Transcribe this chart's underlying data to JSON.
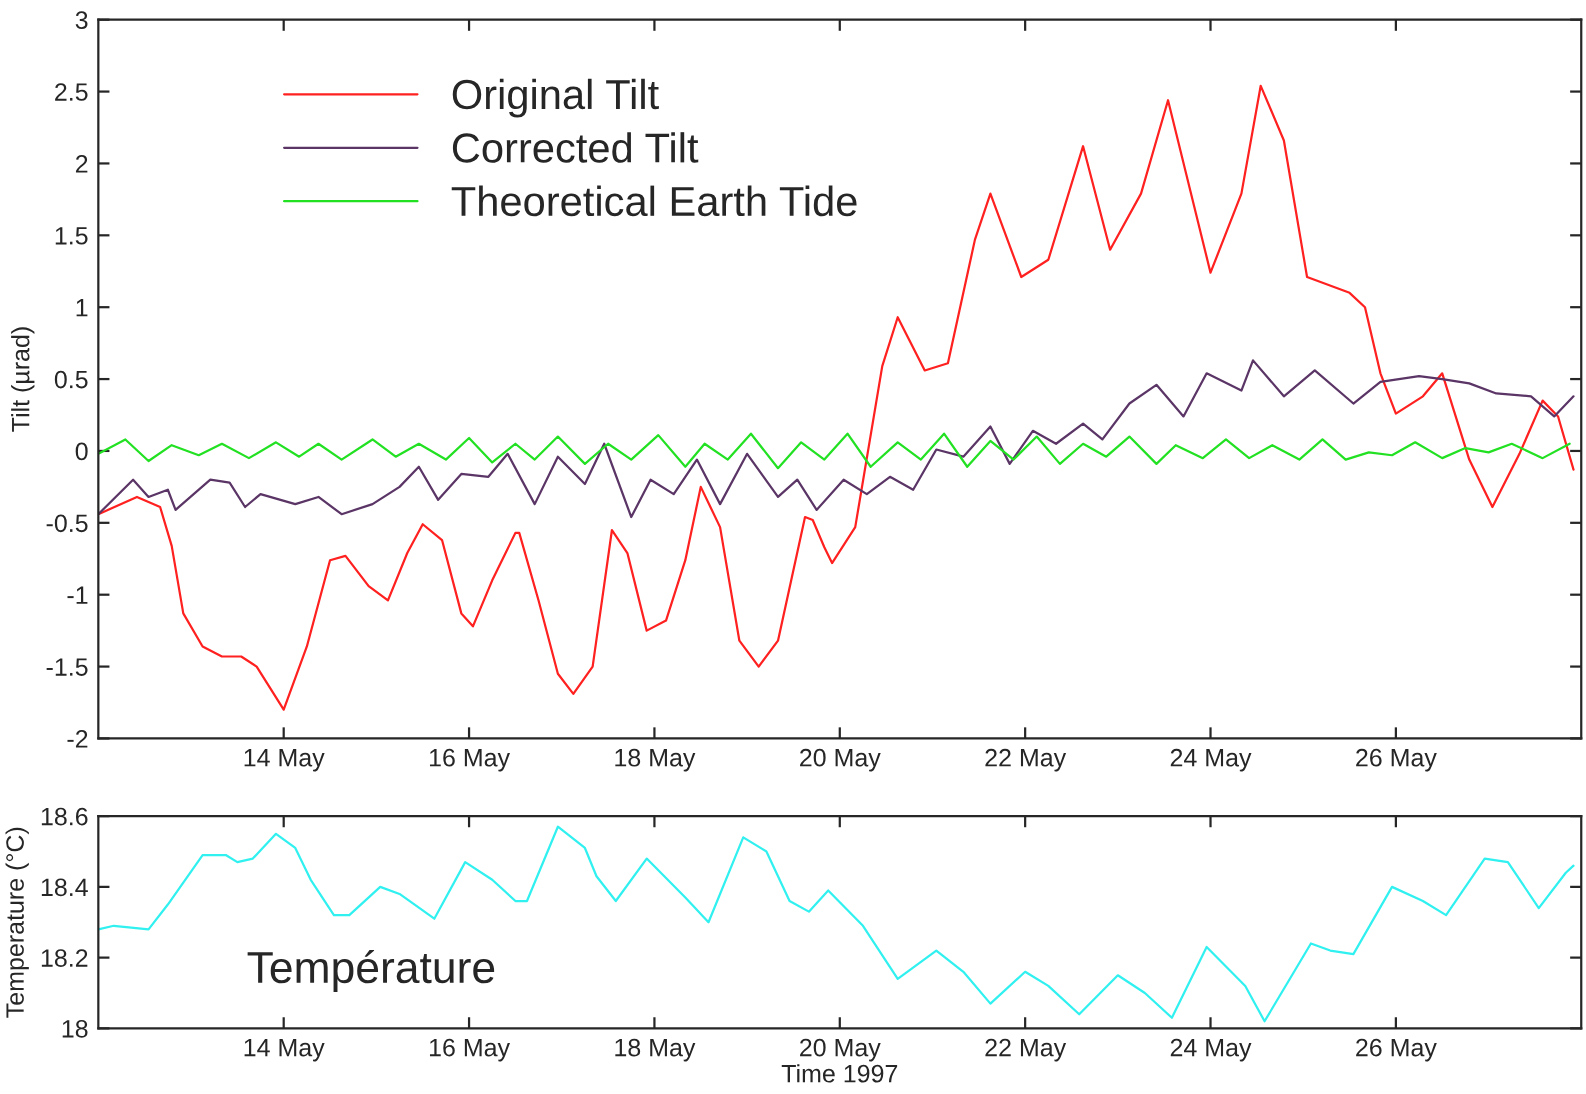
{
  "chart_data": [
    {
      "type": "line",
      "ylabel": "Tilt (µrad)",
      "xlim": [
        "1997-05-12",
        "1997-05-28"
      ],
      "ylim": [
        -2,
        3
      ],
      "xticks": [
        {
          "value": "1997-05-14",
          "label": "14 May"
        },
        {
          "value": "1997-05-16",
          "label": "16 May"
        },
        {
          "value": "1997-05-18",
          "label": "18 May"
        },
        {
          "value": "1997-05-20",
          "label": "20 May"
        },
        {
          "value": "1997-05-22",
          "label": "22 May"
        },
        {
          "value": "1997-05-24",
          "label": "24 May"
        },
        {
          "value": "1997-05-26",
          "label": "26 May"
        }
      ],
      "yticks": [
        -2,
        -1.5,
        -1,
        -0.5,
        0,
        0.5,
        1,
        1.5,
        2,
        2.5,
        3
      ],
      "grid": false,
      "legend": "top left",
      "marker": "none",
      "line_style": "solid",
      "series": [
        {
          "name": "Original Tilt",
          "color": "#ff2020",
          "x": [
            "1997-05-12T00:00",
            "1997-05-12T10:00",
            "1997-05-12T16:00",
            "1997-05-12T19:00",
            "1997-05-12T22:00",
            "1997-05-13T03:00",
            "1997-05-13T08:00",
            "1997-05-13T13:00",
            "1997-05-13T17:00",
            "1997-05-14T00:00",
            "1997-05-14T06:00",
            "1997-05-14T12:00",
            "1997-05-14T16:00",
            "1997-05-14T22:00",
            "1997-05-15T03:00",
            "1997-05-15T08:00",
            "1997-05-15T12:00",
            "1997-05-15T17:00",
            "1997-05-15T22:00",
            "1997-05-16T01:00",
            "1997-05-16T06:00",
            "1997-05-16T12:00",
            "1997-05-16T13:00",
            "1997-05-16T18:00",
            "1997-05-16T23:00",
            "1997-05-17T03:00",
            "1997-05-17T08:00",
            "1997-05-17T13:00",
            "1997-05-17T17:00",
            "1997-05-17T22:00",
            "1997-05-18T03:00",
            "1997-05-18T08:00",
            "1997-05-18T12:00",
            "1997-05-18T17:00",
            "1997-05-18T22:00",
            "1997-05-19T03:00",
            "1997-05-19T08:00",
            "1997-05-19T15:00",
            "1997-05-19T17:00",
            "1997-05-19T20:00",
            "1997-05-19T22:00",
            "1997-05-20T04:00",
            "1997-05-20T11:00",
            "1997-05-20T15:00",
            "1997-05-20T22:00",
            "1997-05-21T04:00",
            "1997-05-21T11:00",
            "1997-05-21T15:00",
            "1997-05-21T23:00",
            "1997-05-22T06:00",
            "1997-05-22T15:00",
            "1997-05-22T22:00",
            "1997-05-23T06:00",
            "1997-05-23T13:00",
            "1997-05-24T00:00",
            "1997-05-24T08:00",
            "1997-05-24T13:00",
            "1997-05-24T19:00",
            "1997-05-25T01:00",
            "1997-05-25T12:00",
            "1997-05-25T16:00",
            "1997-05-25T20:00",
            "1997-05-26T00:00",
            "1997-05-26T07:00",
            "1997-05-26T12:00",
            "1997-05-26T19:00",
            "1997-05-27T01:00",
            "1997-05-27T08:00",
            "1997-05-27T14:00",
            "1997-05-27T18:00",
            "1997-05-27T22:00"
          ],
          "values": [
            -0.44,
            -0.32,
            -0.39,
            -0.66,
            -1.13,
            -1.36,
            -1.43,
            -1.43,
            -1.5,
            -1.8,
            -1.36,
            -0.76,
            -0.73,
            -0.94,
            -1.04,
            -0.71,
            -0.51,
            -0.62,
            -1.13,
            -1.22,
            -0.9,
            -0.57,
            -0.57,
            -1.04,
            -1.55,
            -1.69,
            -1.5,
            -0.55,
            -0.71,
            -1.25,
            -1.18,
            -0.76,
            -0.25,
            -0.53,
            -1.32,
            -1.5,
            -1.32,
            -0.46,
            -0.48,
            -0.67,
            -0.78,
            -0.53,
            0.59,
            0.93,
            0.56,
            0.61,
            1.47,
            1.79,
            1.21,
            1.33,
            2.12,
            1.4,
            1.79,
            2.44,
            1.24,
            1.79,
            2.54,
            2.16,
            1.21,
            1.1,
            1.0,
            0.54,
            0.26,
            0.38,
            0.54,
            -0.06,
            -0.39,
            -0.02,
            0.35,
            0.24,
            -0.13
          ]
        },
        {
          "name": "Corrected Tilt",
          "color": "#5a3566",
          "x": [
            "1997-05-12T00:00",
            "1997-05-12T09:00",
            "1997-05-12T13:00",
            "1997-05-12T18:00",
            "1997-05-12T20:00",
            "1997-05-13T05:00",
            "1997-05-13T10:00",
            "1997-05-13T14:00",
            "1997-05-13T18:00",
            "1997-05-14T03:00",
            "1997-05-14T09:00",
            "1997-05-14T15:00",
            "1997-05-14T23:00",
            "1997-05-15T06:00",
            "1997-05-15T11:00",
            "1997-05-15T16:00",
            "1997-05-15T22:00",
            "1997-05-16T05:00",
            "1997-05-16T10:00",
            "1997-05-16T17:00",
            "1997-05-16T23:00",
            "1997-05-17T06:00",
            "1997-05-17T11:00",
            "1997-05-17T18:00",
            "1997-05-17T23:00",
            "1997-05-18T05:00",
            "1997-05-18T11:00",
            "1997-05-18T17:00",
            "1997-05-19T00:00",
            "1997-05-19T08:00",
            "1997-05-19T13:00",
            "1997-05-19T18:00",
            "1997-05-20T01:00",
            "1997-05-20T07:00",
            "1997-05-20T13:00",
            "1997-05-20T19:00",
            "1997-05-21T01:00",
            "1997-05-21T08:00",
            "1997-05-21T15:00",
            "1997-05-21T20:00",
            "1997-05-22T02:00",
            "1997-05-22T08:00",
            "1997-05-22T15:00",
            "1997-05-22T20:00",
            "1997-05-23T03:00",
            "1997-05-23T10:00",
            "1997-05-23T17:00",
            "1997-05-23T23:00",
            "1997-05-24T08:00",
            "1997-05-24T11:00",
            "1997-05-24T19:00",
            "1997-05-25T03:00",
            "1997-05-25T13:00",
            "1997-05-25T20:00",
            "1997-05-26T06:00",
            "1997-05-26T12:00",
            "1997-05-26T19:00",
            "1997-05-27T02:00",
            "1997-05-27T11:00",
            "1997-05-27T17:00",
            "1997-05-27T22:00"
          ],
          "values": [
            -0.44,
            -0.2,
            -0.32,
            -0.27,
            -0.41,
            -0.2,
            -0.22,
            -0.39,
            -0.3,
            -0.37,
            -0.32,
            -0.44,
            -0.37,
            -0.25,
            -0.11,
            -0.34,
            -0.16,
            -0.18,
            -0.02,
            -0.37,
            -0.04,
            -0.23,
            0.05,
            -0.46,
            -0.2,
            -0.3,
            -0.06,
            -0.37,
            -0.02,
            -0.32,
            -0.2,
            -0.41,
            -0.2,
            -0.3,
            -0.18,
            -0.27,
            0.01,
            -0.04,
            0.17,
            -0.09,
            0.14,
            0.05,
            0.19,
            0.08,
            0.33,
            0.46,
            0.24,
            0.54,
            0.42,
            0.63,
            0.38,
            0.56,
            0.33,
            0.48,
            0.52,
            0.5,
            0.47,
            0.4,
            0.38,
            0.24,
            0.38
          ]
        },
        {
          "name": "Theoretical Earth Tide",
          "color": "#22e022",
          "x": [
            "1997-05-12T00:00",
            "1997-05-12T07:00",
            "1997-05-12T13:00",
            "1997-05-12T19:00",
            "1997-05-13T02:00",
            "1997-05-13T08:00",
            "1997-05-13T15:00",
            "1997-05-13T22:00",
            "1997-05-14T04:00",
            "1997-05-14T09:00",
            "1997-05-14T15:00",
            "1997-05-14T23:00",
            "1997-05-15T05:00",
            "1997-05-15T11:00",
            "1997-05-15T18:00",
            "1997-05-16T00:00",
            "1997-05-16T06:00",
            "1997-05-16T12:00",
            "1997-05-16T17:00",
            "1997-05-16T23:00",
            "1997-05-17T06:00",
            "1997-05-17T12:00",
            "1997-05-17T18:00",
            "1997-05-18T01:00",
            "1997-05-18T08:00",
            "1997-05-18T13:00",
            "1997-05-18T19:00",
            "1997-05-19T01:00",
            "1997-05-19T08:00",
            "1997-05-19T14:00",
            "1997-05-19T20:00",
            "1997-05-20T02:00",
            "1997-05-20T08:00",
            "1997-05-20T15:00",
            "1997-05-20T21:00",
            "1997-05-21T03:00",
            "1997-05-21T09:00",
            "1997-05-21T15:00",
            "1997-05-21T21:00",
            "1997-05-22T03:00",
            "1997-05-22T09:00",
            "1997-05-22T15:00",
            "1997-05-22T21:00",
            "1997-05-23T03:00",
            "1997-05-23T10:00",
            "1997-05-23T15:00",
            "1997-05-23T22:00",
            "1997-05-24T04:00",
            "1997-05-24T10:00",
            "1997-05-24T16:00",
            "1997-05-24T23:00",
            "1997-05-25T05:00",
            "1997-05-25T11:00",
            "1997-05-25T17:00",
            "1997-05-25T23:00",
            "1997-05-26T05:00",
            "1997-05-26T12:00",
            "1997-05-26T18:00",
            "1997-05-27T00:00",
            "1997-05-27T06:00",
            "1997-05-27T14:00",
            "1997-05-27T21:00"
          ],
          "values": [
            -0.02,
            0.08,
            -0.07,
            0.04,
            -0.03,
            0.05,
            -0.05,
            0.06,
            -0.04,
            0.05,
            -0.06,
            0.08,
            -0.04,
            0.05,
            -0.06,
            0.09,
            -0.08,
            0.05,
            -0.06,
            0.1,
            -0.09,
            0.05,
            -0.06,
            0.11,
            -0.11,
            0.05,
            -0.06,
            0.12,
            -0.12,
            0.06,
            -0.06,
            0.12,
            -0.11,
            0.06,
            -0.06,
            0.12,
            -0.11,
            0.07,
            -0.06,
            0.1,
            -0.09,
            0.05,
            -0.04,
            0.1,
            -0.09,
            0.04,
            -0.05,
            0.08,
            -0.05,
            0.04,
            -0.06,
            0.08,
            -0.06,
            -0.01,
            -0.03,
            0.06,
            -0.05,
            0.02,
            -0.01,
            0.05,
            -0.05,
            0.05
          ]
        }
      ]
    },
    {
      "type": "line",
      "xlabel": "Time 1997",
      "ylabel": "Temperature (°C)",
      "annotations": [
        "Température"
      ],
      "xlim": [
        "1997-05-12",
        "1997-05-28"
      ],
      "ylim": [
        18,
        18.6
      ],
      "xticks": [
        {
          "value": "1997-05-14",
          "label": "14 May"
        },
        {
          "value": "1997-05-16",
          "label": "16 May"
        },
        {
          "value": "1997-05-18",
          "label": "18 May"
        },
        {
          "value": "1997-05-20",
          "label": "20 May"
        },
        {
          "value": "1997-05-22",
          "label": "22 May"
        },
        {
          "value": "1997-05-24",
          "label": "24 May"
        },
        {
          "value": "1997-05-26",
          "label": "26 May"
        }
      ],
      "yticks": [
        18,
        {
          "value": 18.2,
          "label": "18.2"
        },
        {
          "value": 18.4,
          "label": "18.4"
        },
        {
          "value": 18.6,
          "label": "18.6"
        }
      ],
      "grid": false,
      "marker": "none",
      "line_style": "solid",
      "series": [
        {
          "color": "#30f0f0",
          "x": [
            "1997-05-12T00:00",
            "1997-05-12T04:00",
            "1997-05-12T13:00",
            "1997-05-12T18:00",
            "1997-05-13T03:00",
            "1997-05-13T09:00",
            "1997-05-13T12:00",
            "1997-05-13T16:00",
            "1997-05-13T22:00",
            "1997-05-14T03:00",
            "1997-05-14T07:00",
            "1997-05-14T13:00",
            "1997-05-14T17:00",
            "1997-05-15T01:00",
            "1997-05-15T06:00",
            "1997-05-15T15:00",
            "1997-05-15T23:00",
            "1997-05-16T06:00",
            "1997-05-16T12:00",
            "1997-05-16T15:00",
            "1997-05-16T23:00",
            "1997-05-17T06:00",
            "1997-05-17T09:00",
            "1997-05-17T14:00",
            "1997-05-17T22:00",
            "1997-05-18T08:00",
            "1997-05-18T14:00",
            "1997-05-18T23:00",
            "1997-05-19T05:00",
            "1997-05-19T11:00",
            "1997-05-19T16:00",
            "1997-05-19T21:00",
            "1997-05-20T06:00",
            "1997-05-20T15:00",
            "1997-05-21T01:00",
            "1997-05-21T08:00",
            "1997-05-21T15:00",
            "1997-05-22T00:00",
            "1997-05-22T06:00",
            "1997-05-22T14:00",
            "1997-05-23T00:00",
            "1997-05-23T07:00",
            "1997-05-23T14:00",
            "1997-05-23T23:00",
            "1997-05-24T09:00",
            "1997-05-24T14:00",
            "1997-05-25T02:00",
            "1997-05-25T07:00",
            "1997-05-25T13:00",
            "1997-05-25T23:00",
            "1997-05-26T07:00",
            "1997-05-26T13:00",
            "1997-05-26T23:00",
            "1997-05-27T05:00",
            "1997-05-27T13:00",
            "1997-05-27T20:00",
            "1997-05-27T22:00"
          ],
          "values": [
            18.28,
            18.29,
            18.28,
            18.35,
            18.49,
            18.49,
            18.47,
            18.48,
            18.55,
            18.51,
            18.42,
            18.32,
            18.32,
            18.4,
            18.38,
            18.31,
            18.47,
            18.42,
            18.36,
            18.36,
            18.57,
            18.51,
            18.43,
            18.36,
            18.48,
            18.37,
            18.3,
            18.54,
            18.5,
            18.36,
            18.33,
            18.39,
            18.29,
            18.14,
            18.22,
            18.16,
            18.07,
            18.16,
            18.12,
            18.04,
            18.15,
            18.1,
            18.03,
            18.23,
            18.12,
            18.02,
            18.24,
            18.22,
            18.21,
            18.4,
            18.36,
            18.32,
            18.48,
            18.47,
            18.34,
            18.44,
            18.46
          ]
        }
      ]
    }
  ]
}
